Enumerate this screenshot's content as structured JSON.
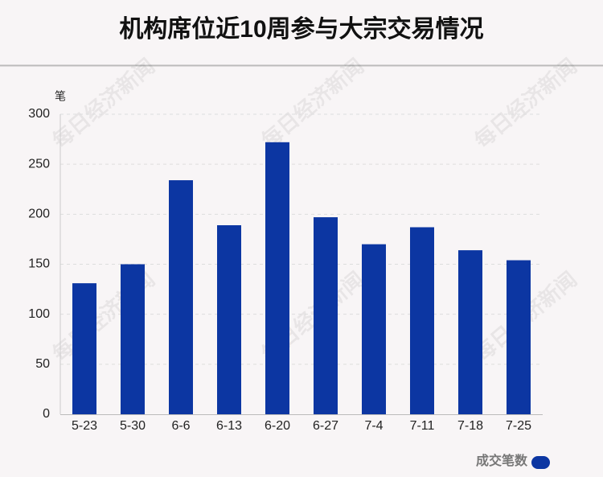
{
  "chart_data": {
    "type": "bar",
    "title": "机构席位近10周参与大宗交易情况",
    "y_unit": "笔",
    "watermark": "每日经济新闻",
    "categories": [
      "5-23",
      "5-30",
      "6-6",
      "6-13",
      "6-20",
      "6-27",
      "7-4",
      "7-11",
      "7-18",
      "7-25"
    ],
    "series": [
      {
        "name": "成交笔数",
        "color": "#0c36a2",
        "values": [
          131,
          150,
          234,
          189,
          272,
          197,
          170,
          187,
          164,
          154
        ]
      }
    ],
    "ylim": [
      0,
      300
    ],
    "yticks": [
      0,
      50,
      100,
      150,
      200,
      250,
      300
    ],
    "grid": true,
    "legend": "bottom-right"
  }
}
